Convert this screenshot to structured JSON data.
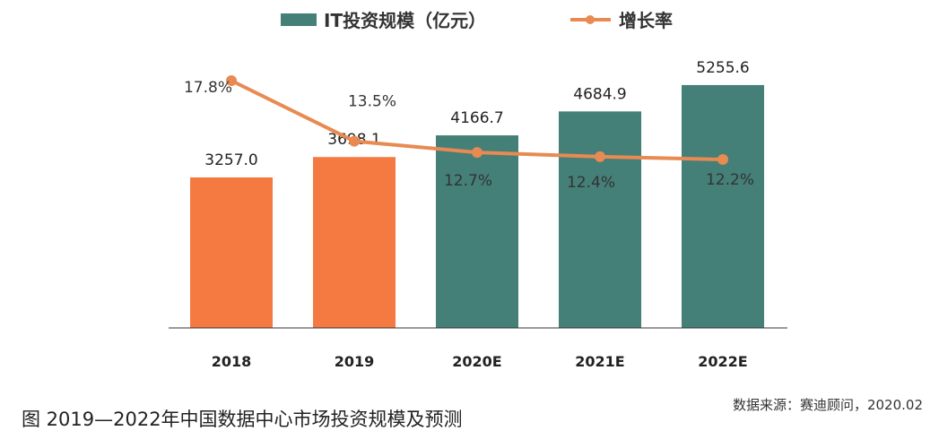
{
  "caption": "图 2019—2022年中国数据中心市场投资规模及预测",
  "source": "数据来源：赛迪顾问，2020.02",
  "colors": {
    "bar_actual": "#F47A42",
    "bar_forecast": "#447F78",
    "line": "#E88A52",
    "axis": "#333333"
  },
  "chart_data": {
    "type": "bar",
    "categories": [
      "2018",
      "2019",
      "2020E",
      "2021E",
      "2022E"
    ],
    "series": [
      {
        "name": "IT投资规模（亿元）",
        "type": "bar",
        "values": [
          3257.0,
          3698.1,
          4166.7,
          4684.9,
          5255.6
        ],
        "labels": [
          "3257.0",
          "3698.1",
          "4166.7",
          "4684.9",
          "5255.6"
        ]
      },
      {
        "name": "增长率",
        "type": "line",
        "values": [
          17.8,
          13.5,
          12.7,
          12.4,
          12.2
        ],
        "labels": [
          "17.8%",
          "13.5%",
          "12.7%",
          "12.4%",
          "12.2%"
        ]
      }
    ],
    "legend_position": "top",
    "grid": false
  }
}
